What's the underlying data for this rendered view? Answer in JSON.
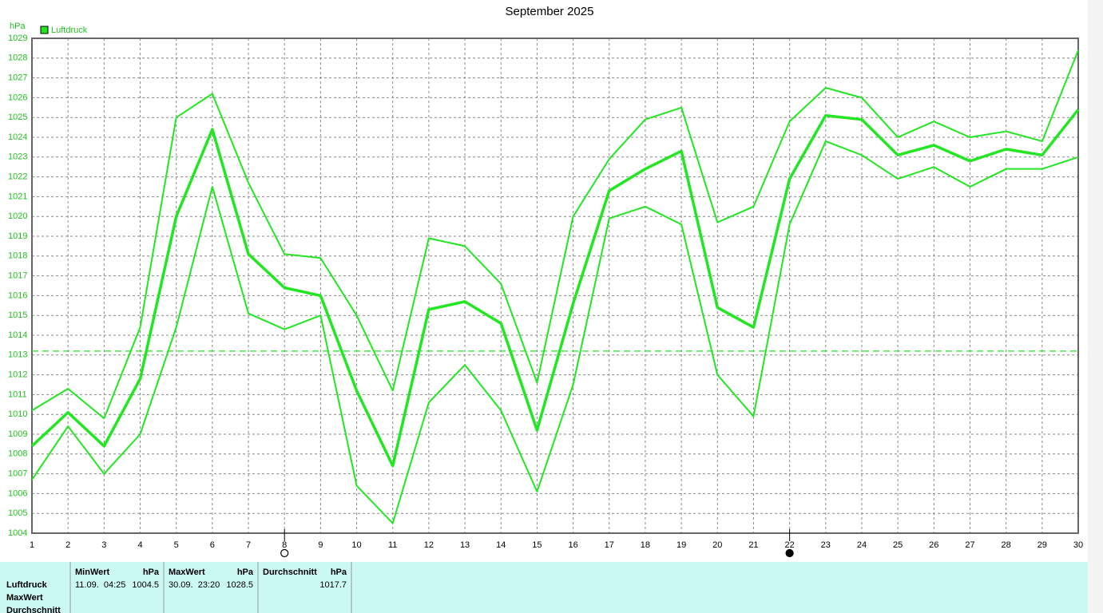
{
  "chart_data": {
    "type": "line",
    "title": "September 2025",
    "y_unit": "hPa",
    "x": [
      1,
      2,
      3,
      4,
      5,
      6,
      7,
      8,
      9,
      10,
      11,
      12,
      13,
      14,
      15,
      16,
      17,
      18,
      19,
      20,
      21,
      22,
      23,
      24,
      25,
      26,
      27,
      28,
      29,
      30
    ],
    "series": [
      {
        "name": "Luftdruck",
        "color": "#22e622",
        "values": [
          1008.4,
          1010.1,
          1008.4,
          1011.8,
          1020.0,
          1024.4,
          1018.1,
          1016.4,
          1016.0,
          1011.2,
          1007.4,
          1015.3,
          1015.7,
          1014.6,
          1009.2,
          1015.6,
          1021.3,
          1022.4,
          1023.3,
          1015.4,
          1014.4,
          1021.9,
          1025.1,
          1024.9,
          1023.1,
          1023.6,
          1022.8,
          1023.4,
          1023.1,
          1025.4
        ]
      }
    ],
    "upper": [
      1010.2,
      1011.3,
      1009.8,
      1014.4,
      1025.0,
      1026.2,
      1021.7,
      1018.1,
      1017.9,
      1015.0,
      1011.2,
      1018.9,
      1018.5,
      1016.6,
      1011.6,
      1020.0,
      1022.9,
      1024.9,
      1025.5,
      1019.7,
      1020.5,
      1024.8,
      1026.5,
      1026.0,
      1024.0,
      1024.8,
      1024.0,
      1024.3,
      1023.8,
      1028.4
    ],
    "lower": [
      1006.7,
      1009.4,
      1007.0,
      1009.0,
      1014.4,
      1021.5,
      1015.1,
      1014.3,
      1015.0,
      1006.4,
      1004.5,
      1010.6,
      1012.5,
      1010.2,
      1006.1,
      1011.5,
      1019.9,
      1020.5,
      1019.6,
      1012.0,
      1009.9,
      1019.6,
      1023.8,
      1023.1,
      1021.9,
      1022.5,
      1021.5,
      1022.4,
      1022.4,
      1023.0
    ],
    "reference_line": 1013.2,
    "moon_markers": [
      {
        "x": 8,
        "filled": false
      },
      {
        "x": 22,
        "filled": true
      }
    ],
    "xlim": [
      1,
      30
    ],
    "xticks": [
      1,
      2,
      3,
      4,
      5,
      6,
      7,
      8,
      9,
      10,
      11,
      12,
      13,
      14,
      15,
      16,
      17,
      18,
      19,
      20,
      21,
      22,
      23,
      24,
      25,
      26,
      27,
      28,
      29,
      30
    ],
    "ylim": [
      1004,
      1029
    ],
    "yticks": [
      1004,
      1005,
      1006,
      1007,
      1008,
      1009,
      1010,
      1011,
      1012,
      1013,
      1014,
      1015,
      1016,
      1017,
      1018,
      1019,
      1020,
      1021,
      1022,
      1023,
      1024,
      1025,
      1026,
      1027,
      1028,
      1029
    ],
    "grid": true,
    "legend": "top-left"
  },
  "stats_table": {
    "row_labels": [
      "Luftdruck",
      "MaxWert",
      "Durchschnitt"
    ],
    "columns": [
      {
        "header": "MinWert",
        "unit": "hPa",
        "time": "11.09.  04:25",
        "value": 1004.5
      },
      {
        "header": "MaxWert",
        "unit": "hPa",
        "time": "30.09.  23:20",
        "value": 1028.5
      },
      {
        "header": "Durchschnitt",
        "unit": "hPa",
        "value": 1017.7
      }
    ]
  }
}
